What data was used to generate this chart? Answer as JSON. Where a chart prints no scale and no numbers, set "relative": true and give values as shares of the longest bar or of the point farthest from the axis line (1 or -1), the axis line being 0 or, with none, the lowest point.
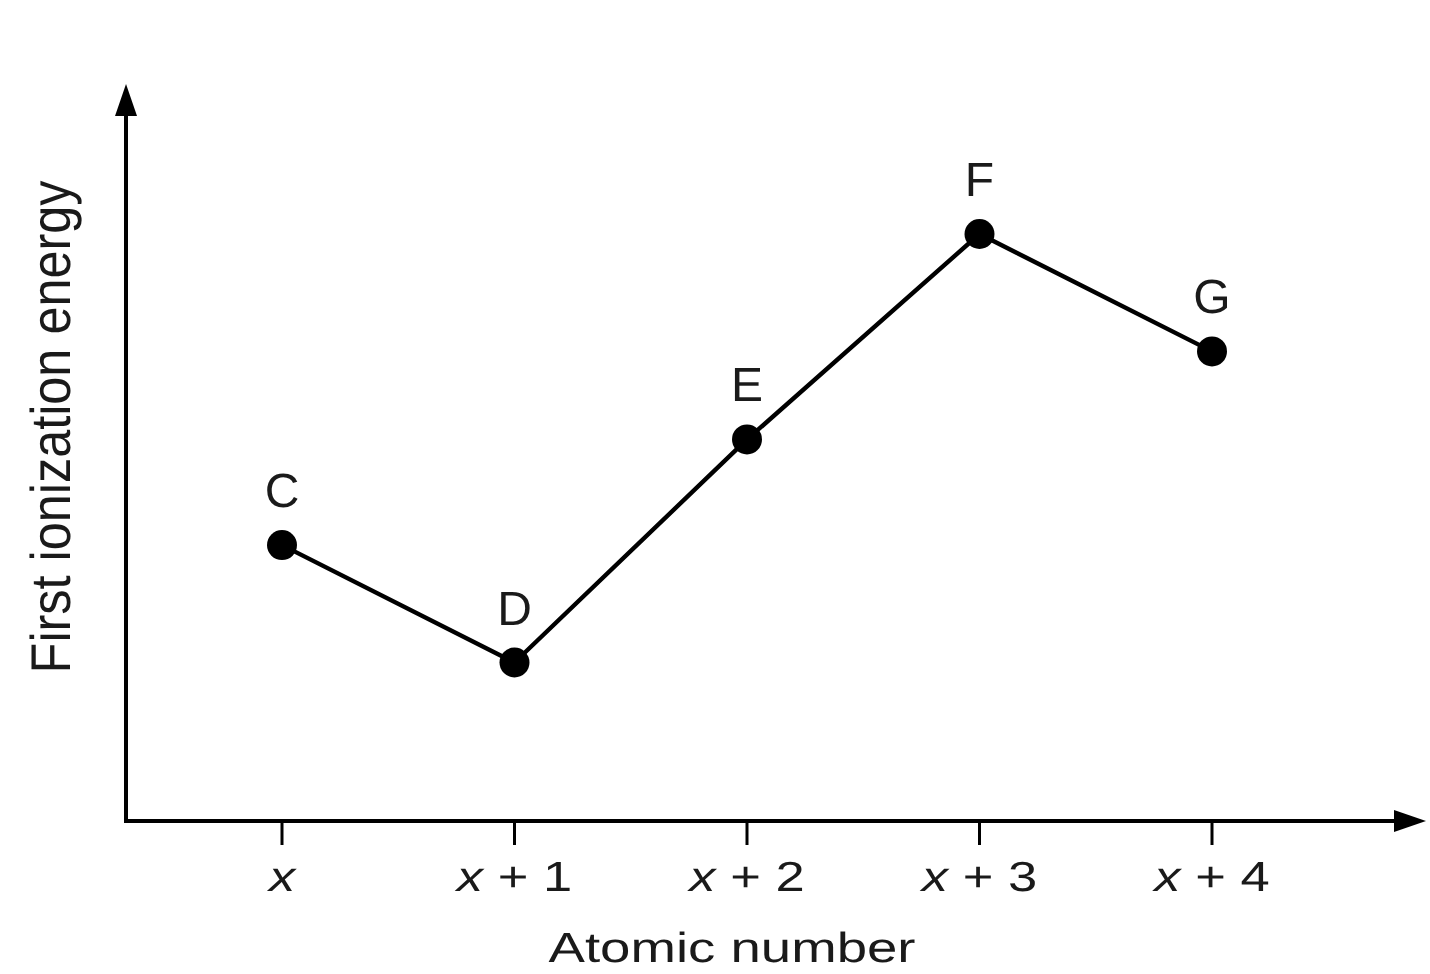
{
  "chart_data": {
    "type": "line",
    "xlabel": "Atomic number",
    "ylabel": "First ionization energy",
    "categories": [
      "x",
      "x + 1",
      "x + 2",
      "x + 3",
      "x + 4"
    ],
    "relative": true,
    "series": [
      {
        "color": "#000000",
        "values": [
          0.47,
          0.27,
          0.65,
          1,
          0.8
        ]
      }
    ],
    "marker": "circle",
    "line_style": "solid",
    "annotations": [
      {
        "text": "C",
        "x": "x",
        "y": 0.47
      },
      {
        "text": "D",
        "x": "x + 1",
        "y": 0.27
      },
      {
        "text": "E",
        "x": "x + 2",
        "y": 0.65
      },
      {
        "text": "F",
        "x": "x + 3",
        "y": 1
      },
      {
        "text": "G",
        "x": "x + 4",
        "y": 0.8
      }
    ]
  }
}
